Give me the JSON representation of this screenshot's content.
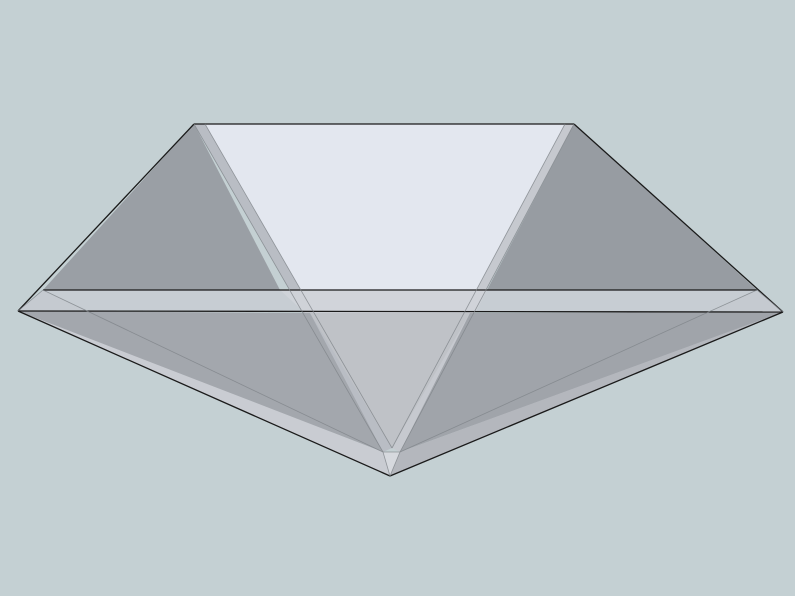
{
  "scene": {
    "description_visible_text": "",
    "colors": {
      "background": "#c4d0d3",
      "top_face": "#e3e7ef",
      "side_face_dark": "#9a9fa5",
      "side_face_mid": "#a9adb3",
      "lower_face": "#bfc2c7",
      "bevel_light": "#c9ccd2",
      "bevel_edge": "#d6d9de",
      "edge_stroke": "#1a1a1a"
    }
  }
}
